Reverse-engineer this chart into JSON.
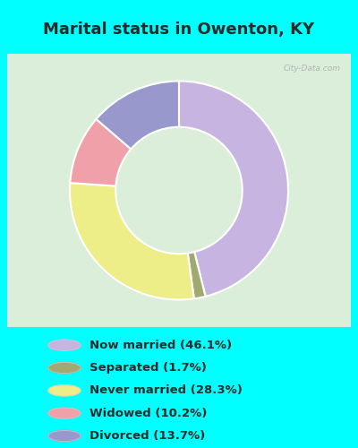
{
  "title": "Marital status in Owenton, KY",
  "title_color": "#2a2a2a",
  "bg_color": "#00FFFF",
  "chart_box_color": "#daeeda",
  "slices": [
    {
      "label": "Now married (46.1%)",
      "value": 46.1,
      "color": "#c8b4e0"
    },
    {
      "label": "Separated (1.7%)",
      "value": 1.7,
      "color": "#a0aa70"
    },
    {
      "label": "Never married (28.3%)",
      "value": 28.3,
      "color": "#eeee88"
    },
    {
      "label": "Widowed (10.2%)",
      "value": 10.2,
      "color": "#f0a0a8"
    },
    {
      "label": "Divorced (13.7%)",
      "value": 13.7,
      "color": "#9898cc"
    }
  ],
  "legend_colors": [
    "#c8b4e0",
    "#a0aa70",
    "#eeee88",
    "#f0a0a8",
    "#9898cc"
  ],
  "legend_labels": [
    "Now married (46.1%)",
    "Separated (1.7%)",
    "Never married (28.3%)",
    "Widowed (10.2%)",
    "Divorced (13.7%)"
  ],
  "watermark": "City-Data.com",
  "figsize": [
    4.0,
    5.0
  ],
  "dpi": 100
}
